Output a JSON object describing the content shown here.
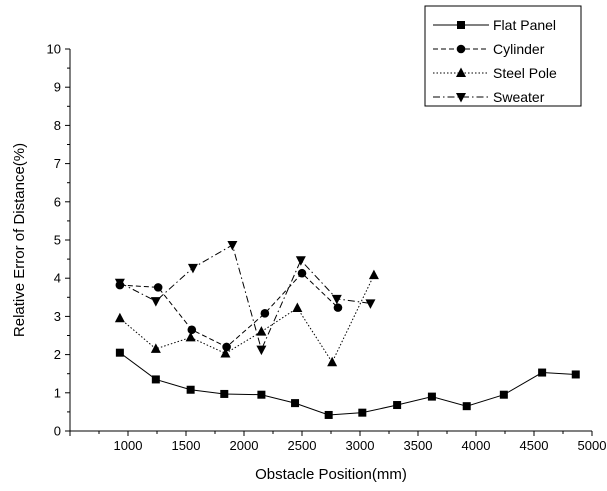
{
  "chart_data": {
    "type": "line",
    "title": "",
    "xlabel": "Obstacle Position(mm)",
    "ylabel": "Relative Error of Distance(%)",
    "xlim": [
      500,
      5000
    ],
    "ylim": [
      0,
      10
    ],
    "x_ticks": [
      1000,
      1500,
      2000,
      2500,
      3000,
      3500,
      4000,
      4500,
      5000
    ],
    "y_ticks": [
      0,
      1,
      2,
      3,
      4,
      5,
      6,
      7,
      8,
      9,
      10
    ],
    "grid": false,
    "legend_position": "top-right",
    "series": [
      {
        "name": "Flat Panel",
        "marker": "square",
        "dash": "solid",
        "x": [
          930,
          1240,
          1540,
          1830,
          2150,
          2440,
          2730,
          3020,
          3320,
          3620,
          3920,
          4240,
          4570,
          4860
        ],
        "y": [
          2.05,
          1.35,
          1.08,
          0.97,
          0.95,
          0.73,
          0.42,
          0.48,
          0.68,
          0.9,
          0.65,
          0.95,
          1.53,
          1.48
        ]
      },
      {
        "name": "Cylinder",
        "marker": "circle",
        "dash": "dashed",
        "x": [
          930,
          1260,
          1550,
          1850,
          2180,
          2500,
          2810
        ],
        "y": [
          3.82,
          3.76,
          2.65,
          2.2,
          3.08,
          4.13,
          3.23
        ]
      },
      {
        "name": "Steel Pole",
        "marker": "triangle-up",
        "dash": "dotted",
        "x": [
          930,
          1240,
          1540,
          1840,
          2150,
          2460,
          2760,
          3120
        ],
        "y": [
          2.95,
          2.15,
          2.45,
          2.03,
          2.6,
          3.22,
          1.8,
          4.08
        ]
      },
      {
        "name": "Sweater",
        "marker": "triangle-down",
        "dash": "dashdot",
        "x": [
          930,
          1240,
          1560,
          1900,
          2150,
          2490,
          2800,
          3090
        ],
        "y": [
          3.88,
          3.4,
          4.27,
          4.87,
          2.13,
          4.47,
          3.46,
          3.34
        ]
      }
    ]
  }
}
